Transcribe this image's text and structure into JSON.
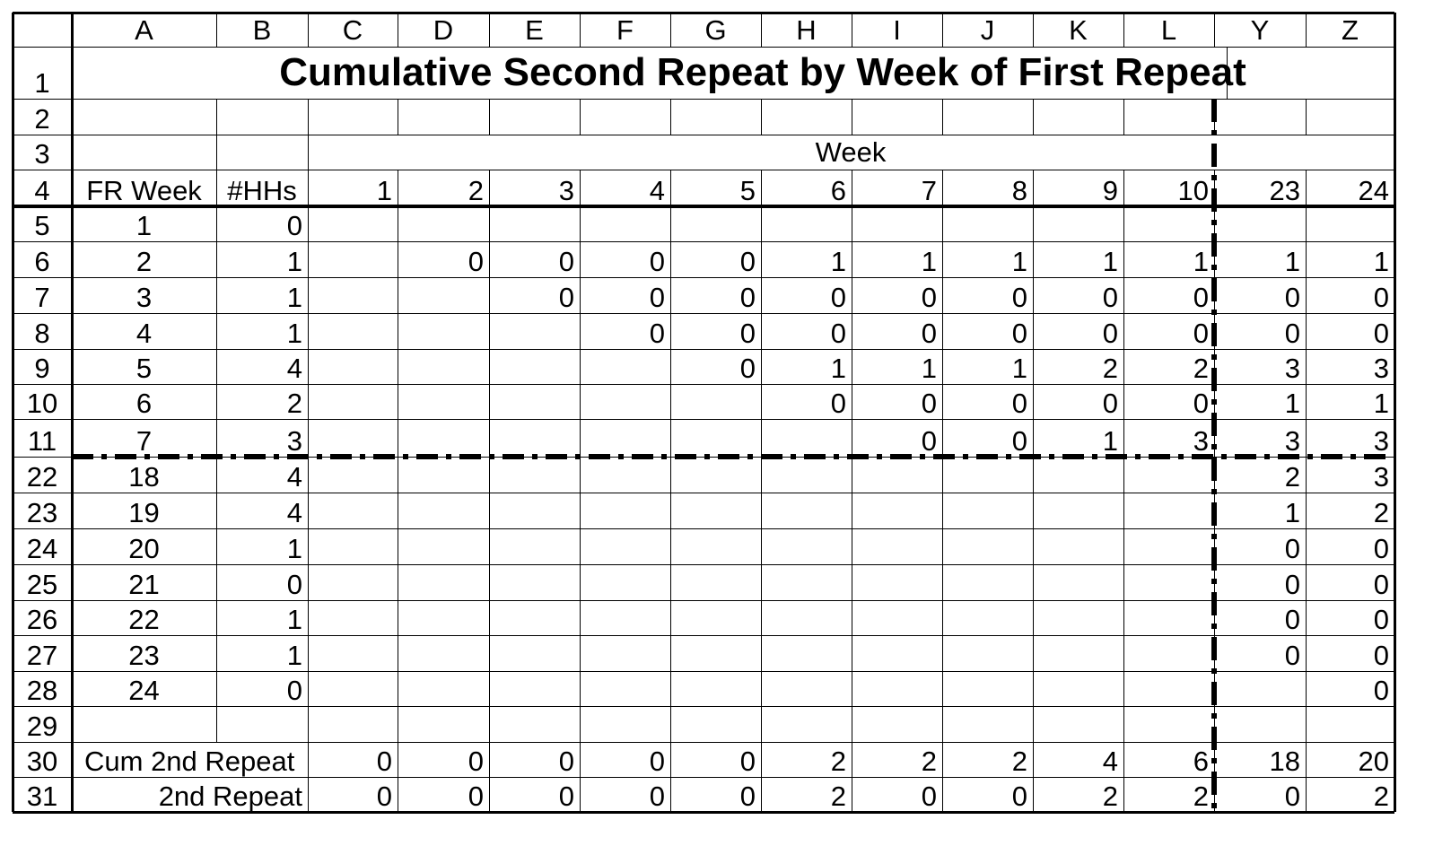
{
  "sheet": {
    "column_headers": [
      "A",
      "B",
      "C",
      "D",
      "E",
      "F",
      "G",
      "H",
      "I",
      "J",
      "K",
      "L",
      "Y",
      "Z"
    ],
    "title": "Cumulative Second Repeat by Week of First Repeat",
    "week_label": "Week",
    "rows": [
      {
        "num": "1",
        "cells": [
          "",
          "",
          "",
          "",
          "",
          "",
          "",
          "",
          "",
          "",
          "",
          "",
          "",
          ""
        ]
      },
      {
        "num": "2",
        "cells": [
          "",
          "",
          "",
          "",
          "",
          "",
          "",
          "",
          "",
          "",
          "",
          "",
          "",
          ""
        ]
      },
      {
        "num": "3",
        "cells": [
          "",
          "",
          "",
          "",
          "",
          "",
          "",
          "",
          "",
          "",
          "",
          "",
          "",
          ""
        ]
      },
      {
        "num": "4",
        "cells": [
          "FR Week",
          "#HHs",
          "1",
          "2",
          "3",
          "4",
          "5",
          "6",
          "7",
          "8",
          "9",
          "10",
          "23",
          "24"
        ]
      },
      {
        "num": "5",
        "cells": [
          "1",
          "0",
          "",
          "",
          "",
          "",
          "",
          "",
          "",
          "",
          "",
          "",
          "",
          ""
        ]
      },
      {
        "num": "6",
        "cells": [
          "2",
          "1",
          "",
          "0",
          "0",
          "0",
          "0",
          "1",
          "1",
          "1",
          "1",
          "1",
          "1",
          "1"
        ]
      },
      {
        "num": "7",
        "cells": [
          "3",
          "1",
          "",
          "",
          "0",
          "0",
          "0",
          "0",
          "0",
          "0",
          "0",
          "0",
          "0",
          "0"
        ]
      },
      {
        "num": "8",
        "cells": [
          "4",
          "1",
          "",
          "",
          "",
          "0",
          "0",
          "0",
          "0",
          "0",
          "0",
          "0",
          "0",
          "0"
        ]
      },
      {
        "num": "9",
        "cells": [
          "5",
          "4",
          "",
          "",
          "",
          "",
          "0",
          "1",
          "1",
          "1",
          "2",
          "2",
          "3",
          "3"
        ]
      },
      {
        "num": "10",
        "cells": [
          "6",
          "2",
          "",
          "",
          "",
          "",
          "",
          "0",
          "0",
          "0",
          "0",
          "0",
          "1",
          "1"
        ]
      },
      {
        "num": "11",
        "cells": [
          "7",
          "3",
          "",
          "",
          "",
          "",
          "",
          "",
          "0",
          "0",
          "1",
          "3",
          "3",
          "3"
        ]
      },
      {
        "num": "22",
        "cells": [
          "18",
          "4",
          "",
          "",
          "",
          "",
          "",
          "",
          "",
          "",
          "",
          "",
          "2",
          "3"
        ]
      },
      {
        "num": "23",
        "cells": [
          "19",
          "4",
          "",
          "",
          "",
          "",
          "",
          "",
          "",
          "",
          "",
          "",
          "1",
          "2"
        ]
      },
      {
        "num": "24",
        "cells": [
          "20",
          "1",
          "",
          "",
          "",
          "",
          "",
          "",
          "",
          "",
          "",
          "",
          "0",
          "0"
        ]
      },
      {
        "num": "25",
        "cells": [
          "21",
          "0",
          "",
          "",
          "",
          "",
          "",
          "",
          "",
          "",
          "",
          "",
          "0",
          "0"
        ]
      },
      {
        "num": "26",
        "cells": [
          "22",
          "1",
          "",
          "",
          "",
          "",
          "",
          "",
          "",
          "",
          "",
          "",
          "0",
          "0"
        ]
      },
      {
        "num": "27",
        "cells": [
          "23",
          "1",
          "",
          "",
          "",
          "",
          "",
          "",
          "",
          "",
          "",
          "",
          "0",
          "0"
        ]
      },
      {
        "num": "28",
        "cells": [
          "24",
          "0",
          "",
          "",
          "",
          "",
          "",
          "",
          "",
          "",
          "",
          "",
          "",
          "0"
        ]
      },
      {
        "num": "29",
        "cells": [
          "",
          "",
          "",
          "",
          "",
          "",
          "",
          "",
          "",
          "",
          "",
          "",
          "",
          ""
        ]
      },
      {
        "num": "30",
        "cells": [
          "Cum 2nd Repeat",
          "",
          "0",
          "0",
          "0",
          "0",
          "0",
          "2",
          "2",
          "2",
          "4",
          "6",
          "18",
          "20"
        ]
      },
      {
        "num": "31",
        "cells": [
          "2nd Repeat",
          "",
          "0",
          "0",
          "0",
          "0",
          "0",
          "2",
          "0",
          "0",
          "2",
          "2",
          "0",
          "2"
        ]
      }
    ]
  }
}
